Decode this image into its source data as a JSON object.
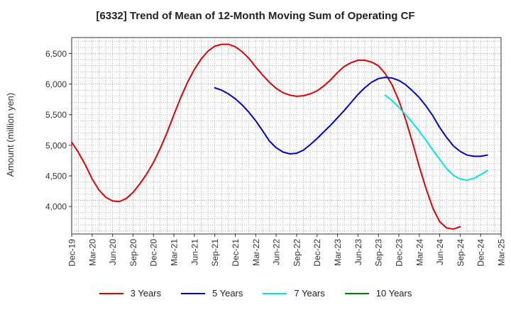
{
  "chart_data": {
    "type": "line",
    "title": "[6332]  Trend of Mean of 12-Month Moving Sum of Operating CF",
    "xlabel": "",
    "ylabel": "Amount (million yen)",
    "x_tick_labels": [
      "Dec-19",
      "Mar-20",
      "Jun-20",
      "Sep-20",
      "Dec-20",
      "Mar-21",
      "Jun-21",
      "Sep-21",
      "Dec-21",
      "Mar-22",
      "Jun-22",
      "Sep-22",
      "Dec-22",
      "Mar-23",
      "Jun-23",
      "Sep-23",
      "Dec-23",
      "Mar-24",
      "Jun-24",
      "Sep-24",
      "Dec-24",
      "Mar-25"
    ],
    "y_ticks": [
      4000,
      4500,
      5000,
      5500,
      6000,
      6500
    ],
    "y_tick_labels": [
      "4,000",
      "4,500",
      "5,000",
      "5,500",
      "6,000",
      "6,500"
    ],
    "ylim": [
      3550,
      6760
    ],
    "x_month_range": [
      0,
      63
    ],
    "grid": true,
    "series": [
      {
        "name": "3 Years",
        "color": "#e00000",
        "start_month": 0,
        "values": [
          5050,
          4880,
          4680,
          4450,
          4270,
          4150,
          4090,
          4080,
          4130,
          4230,
          4370,
          4530,
          4720,
          4950,
          5210,
          5500,
          5780,
          6030,
          6240,
          6410,
          6540,
          6620,
          6650,
          6650,
          6610,
          6530,
          6420,
          6280,
          6150,
          6030,
          5930,
          5860,
          5820,
          5800,
          5810,
          5840,
          5890,
          5970,
          6070,
          6190,
          6290,
          6350,
          6390,
          6390,
          6360,
          6300,
          6170,
          5990,
          5730,
          5420,
          5050,
          4650,
          4290,
          3970,
          3750,
          3650,
          3630,
          3670
        ]
      },
      {
        "name": "5 Years",
        "color": "#0000cc",
        "start_month": 21,
        "values": [
          5940,
          5900,
          5840,
          5760,
          5660,
          5540,
          5400,
          5240,
          5070,
          4960,
          4890,
          4860,
          4870,
          4920,
          5010,
          5110,
          5220,
          5330,
          5450,
          5570,
          5700,
          5830,
          5940,
          6030,
          6090,
          6110,
          6100,
          6060,
          5990,
          5890,
          5780,
          5640,
          5480,
          5290,
          5130,
          4990,
          4900,
          4840,
          4820,
          4820,
          4840
        ]
      },
      {
        "name": "7 Years",
        "color": "#00e5e5",
        "start_month": 46,
        "values": [
          5820,
          5730,
          5620,
          5500,
          5370,
          5230,
          5080,
          4920,
          4770,
          4620,
          4510,
          4450,
          4430,
          4460,
          4520,
          4590
        ]
      },
      {
        "name": "10 Years",
        "color": "#008000",
        "start_month": 0,
        "values": []
      }
    ]
  }
}
